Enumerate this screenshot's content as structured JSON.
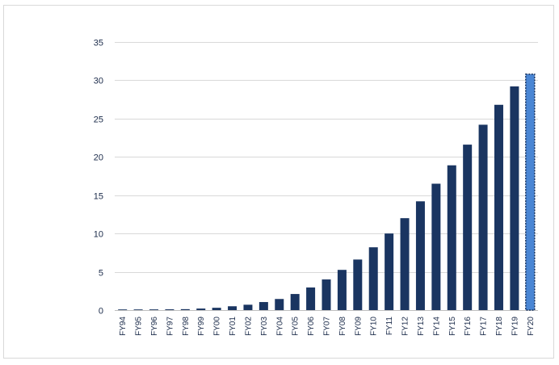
{
  "chart_data": {
    "type": "bar",
    "title": "",
    "xlabel": "",
    "ylabel": "",
    "ylim": [
      0,
      35
    ],
    "yticks": [
      0,
      5,
      10,
      15,
      20,
      25,
      30,
      35
    ],
    "grid": true,
    "categories": [
      "FY94",
      "FY95",
      "FY96",
      "FY97",
      "FY98",
      "FY99",
      "FY00",
      "FY01",
      "FY02",
      "FY03",
      "FY04",
      "FY05",
      "FY06",
      "FY07",
      "FY08",
      "FY09",
      "FY10",
      "FY11",
      "FY12",
      "FY13",
      "FY14",
      "FY15",
      "FY16",
      "FY17",
      "FY18",
      "FY19",
      "FY20"
    ],
    "values": [
      0.05,
      0.07,
      0.09,
      0.1,
      0.12,
      0.2,
      0.3,
      0.5,
      0.7,
      1.05,
      1.45,
      2.1,
      2.95,
      4.0,
      5.25,
      6.6,
      8.2,
      10.0,
      12.0,
      14.2,
      16.5,
      18.9,
      21.6,
      24.2,
      26.8,
      29.2,
      30.8
    ],
    "colors": {
      "bar": "#1a3561",
      "highlight": "#4a86d4",
      "highlight_border": "#1a3561"
    },
    "highlight_index": 26
  }
}
